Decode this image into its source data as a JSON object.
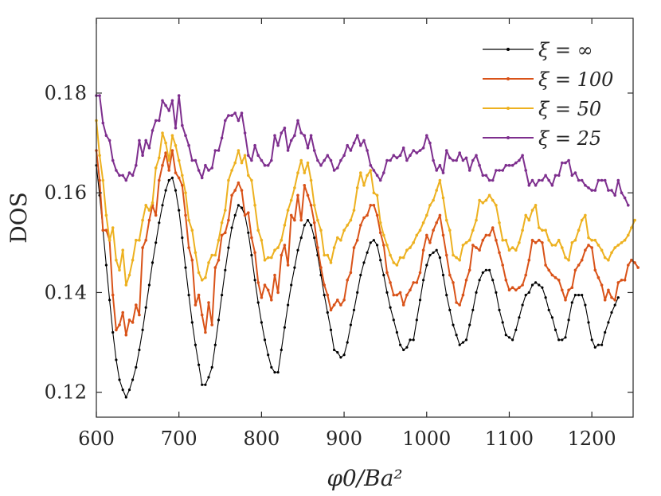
{
  "chart_data": {
    "type": "line",
    "title": "",
    "xlabel": "φ0/Ba²",
    "ylabel": "DOS",
    "xlim": [
      600,
      1250
    ],
    "ylim": [
      0.115,
      0.195
    ],
    "xticks": [
      600,
      700,
      800,
      900,
      1000,
      1100,
      1200
    ],
    "xtick_labels": [
      "600",
      "700",
      "800",
      "900",
      "1000",
      "1100",
      "1200"
    ],
    "yticks": [
      0.12,
      0.14,
      0.16,
      0.18
    ],
    "ytick_labels": [
      "0.12",
      "0.14",
      "0.16",
      "0.18"
    ],
    "grid": false,
    "legend_position": "top-right",
    "x_start": 600,
    "x_step": 4,
    "series": [
      {
        "name": "ξ = ∞",
        "color": "#000000",
        "values": [
          0.1655,
          0.1595,
          0.1525,
          0.1455,
          0.1385,
          0.132,
          0.1265,
          0.1225,
          0.1205,
          0.119,
          0.1205,
          0.1225,
          0.125,
          0.1285,
          0.1325,
          0.137,
          0.1415,
          0.146,
          0.15,
          0.154,
          0.1575,
          0.1605,
          0.1625,
          0.163,
          0.1605,
          0.1565,
          0.151,
          0.145,
          0.1395,
          0.134,
          0.1295,
          0.1255,
          0.1215,
          0.1215,
          0.123,
          0.125,
          0.1295,
          0.1345,
          0.1395,
          0.1445,
          0.149,
          0.153,
          0.1555,
          0.1575,
          0.157,
          0.1555,
          0.152,
          0.1475,
          0.1425,
          0.138,
          0.134,
          0.1305,
          0.1275,
          0.125,
          0.124,
          0.124,
          0.1285,
          0.133,
          0.1375,
          0.1415,
          0.145,
          0.1485,
          0.151,
          0.1535,
          0.1545,
          0.1535,
          0.151,
          0.1475,
          0.1435,
          0.1395,
          0.136,
          0.1325,
          0.1285,
          0.128,
          0.127,
          0.1275,
          0.13,
          0.1335,
          0.1365,
          0.14,
          0.1435,
          0.146,
          0.148,
          0.15,
          0.1505,
          0.1495,
          0.1465,
          0.1435,
          0.14,
          0.137,
          0.1345,
          0.132,
          0.1295,
          0.1285,
          0.129,
          0.1305,
          0.1305,
          0.1345,
          0.1385,
          0.1425,
          0.1455,
          0.1475,
          0.148,
          0.1485,
          0.147,
          0.1435,
          0.1395,
          0.1365,
          0.1335,
          0.1315,
          0.1295,
          0.13,
          0.1305,
          0.1335,
          0.1365,
          0.14,
          0.1425,
          0.144,
          0.1445,
          0.1445,
          0.1425,
          0.14,
          0.1365,
          0.134,
          0.1315,
          0.131,
          0.1305,
          0.1325,
          0.135,
          0.1375,
          0.1395,
          0.14,
          0.1415,
          0.142,
          0.1415,
          0.141,
          0.139,
          0.1365,
          0.135,
          0.1325,
          0.1305,
          0.1305,
          0.131,
          0.1345,
          0.138,
          0.1395,
          0.1395,
          0.1395,
          0.1375,
          0.134,
          0.1305,
          0.129,
          0.1295,
          0.1295,
          0.132,
          0.134,
          0.136,
          0.1375,
          0.139
        ]
      },
      {
        "name": "ξ = 100",
        "color": "#D95319",
        "values": [
          0.1685,
          0.1625,
          0.1525,
          0.1525,
          0.1505,
          0.1395,
          0.1325,
          0.1335,
          0.136,
          0.1315,
          0.1345,
          0.134,
          0.1375,
          0.1355,
          0.149,
          0.1505,
          0.1545,
          0.1575,
          0.1555,
          0.1625,
          0.1655,
          0.168,
          0.1645,
          0.1685,
          0.164,
          0.163,
          0.1615,
          0.1555,
          0.149,
          0.1465,
          0.1375,
          0.1395,
          0.1355,
          0.132,
          0.138,
          0.1335,
          0.145,
          0.1465,
          0.1515,
          0.152,
          0.1545,
          0.1595,
          0.1605,
          0.162,
          0.1605,
          0.1555,
          0.156,
          0.151,
          0.148,
          0.142,
          0.139,
          0.1415,
          0.1405,
          0.1385,
          0.1435,
          0.14,
          0.1475,
          0.1495,
          0.1455,
          0.1555,
          0.1545,
          0.1595,
          0.1545,
          0.1615,
          0.1595,
          0.1575,
          0.154,
          0.149,
          0.145,
          0.1415,
          0.1395,
          0.1365,
          0.1375,
          0.1385,
          0.1375,
          0.1385,
          0.1425,
          0.144,
          0.149,
          0.1505,
          0.1535,
          0.155,
          0.1555,
          0.1575,
          0.1575,
          0.1555,
          0.152,
          0.1495,
          0.144,
          0.142,
          0.1395,
          0.1395,
          0.14,
          0.1375,
          0.1395,
          0.1405,
          0.142,
          0.142,
          0.144,
          0.1485,
          0.1515,
          0.15,
          0.1525,
          0.154,
          0.1555,
          0.1515,
          0.1475,
          0.1435,
          0.142,
          0.138,
          0.1375,
          0.1395,
          0.1425,
          0.1445,
          0.1495,
          0.149,
          0.1485,
          0.1505,
          0.1515,
          0.1515,
          0.153,
          0.1505,
          0.148,
          0.1455,
          0.1425,
          0.1405,
          0.141,
          0.1405,
          0.141,
          0.1415,
          0.1435,
          0.1465,
          0.1505,
          0.15,
          0.1505,
          0.15,
          0.1455,
          0.1445,
          0.1435,
          0.143,
          0.1425,
          0.1405,
          0.1385,
          0.1405,
          0.141,
          0.1445,
          0.1455,
          0.1465,
          0.1485,
          0.1495,
          0.149,
          0.1445,
          0.143,
          0.1415,
          0.1385,
          0.1405,
          0.139,
          0.1385,
          0.142,
          0.1425,
          0.1425,
          0.1455,
          0.1465,
          0.146,
          0.145
        ]
      },
      {
        "name": "ξ = 50",
        "color": "#EDB120",
        "values": [
          0.1745,
          0.1675,
          0.1625,
          0.1555,
          0.1505,
          0.153,
          0.1465,
          0.1445,
          0.1485,
          0.1415,
          0.1435,
          0.1465,
          0.1505,
          0.1505,
          0.1545,
          0.1575,
          0.1565,
          0.158,
          0.165,
          0.167,
          0.172,
          0.17,
          0.1665,
          0.1715,
          0.1695,
          0.1665,
          0.1635,
          0.16,
          0.1545,
          0.1525,
          0.148,
          0.144,
          0.1425,
          0.143,
          0.146,
          0.1475,
          0.1475,
          0.1505,
          0.154,
          0.1565,
          0.1625,
          0.1645,
          0.166,
          0.1685,
          0.166,
          0.1675,
          0.1635,
          0.1625,
          0.1575,
          0.1525,
          0.1505,
          0.1465,
          0.147,
          0.147,
          0.1485,
          0.149,
          0.1505,
          0.1535,
          0.1565,
          0.1585,
          0.161,
          0.164,
          0.1665,
          0.164,
          0.166,
          0.1625,
          0.1575,
          0.1545,
          0.1525,
          0.1475,
          0.1475,
          0.146,
          0.149,
          0.151,
          0.1505,
          0.1525,
          0.1535,
          0.1545,
          0.1565,
          0.161,
          0.164,
          0.1615,
          0.1635,
          0.1645,
          0.16,
          0.1595,
          0.154,
          0.1515,
          0.1495,
          0.1475,
          0.146,
          0.1455,
          0.147,
          0.147,
          0.1485,
          0.149,
          0.15,
          0.1515,
          0.1525,
          0.154,
          0.1555,
          0.1575,
          0.1585,
          0.1605,
          0.1625,
          0.159,
          0.1545,
          0.1525,
          0.1475,
          0.147,
          0.1465,
          0.1495,
          0.15,
          0.1505,
          0.1525,
          0.1545,
          0.1585,
          0.158,
          0.1585,
          0.1595,
          0.1585,
          0.1575,
          0.154,
          0.1505,
          0.1505,
          0.1485,
          0.149,
          0.1485,
          0.15,
          0.1525,
          0.1555,
          0.1545,
          0.1565,
          0.1575,
          0.153,
          0.1525,
          0.1525,
          0.1505,
          0.1495,
          0.1495,
          0.1505,
          0.149,
          0.147,
          0.1465,
          0.15,
          0.1505,
          0.1525,
          0.1545,
          0.1555,
          0.151,
          0.1505,
          0.1505,
          0.1495,
          0.1485,
          0.147,
          0.1465,
          0.148,
          0.149,
          0.1495,
          0.15,
          0.1505,
          0.1515,
          0.153,
          0.1545
        ]
      },
      {
        "name": "ξ = 25",
        "color": "#7E2F8E",
        "values": [
          0.1795,
          0.1795,
          0.174,
          0.1715,
          0.1705,
          0.1665,
          0.1645,
          0.1635,
          0.1635,
          0.1625,
          0.164,
          0.1635,
          0.1655,
          0.1705,
          0.1675,
          0.1705,
          0.169,
          0.1725,
          0.1745,
          0.1745,
          0.1785,
          0.1775,
          0.1765,
          0.1785,
          0.173,
          0.1795,
          0.1735,
          0.1715,
          0.1695,
          0.1665,
          0.1665,
          0.1645,
          0.163,
          0.1655,
          0.1645,
          0.165,
          0.1685,
          0.1685,
          0.171,
          0.1745,
          0.1755,
          0.1755,
          0.176,
          0.1745,
          0.176,
          0.172,
          0.1675,
          0.1665,
          0.1695,
          0.1675,
          0.1665,
          0.1655,
          0.1655,
          0.1665,
          0.1715,
          0.1695,
          0.172,
          0.173,
          0.1685,
          0.1705,
          0.1715,
          0.1745,
          0.172,
          0.1715,
          0.169,
          0.1715,
          0.1685,
          0.1665,
          0.1655,
          0.1665,
          0.1675,
          0.1665,
          0.1645,
          0.165,
          0.1665,
          0.1675,
          0.1695,
          0.1685,
          0.17,
          0.1715,
          0.1695,
          0.1705,
          0.1685,
          0.1655,
          0.1645,
          0.1635,
          0.1625,
          0.164,
          0.1665,
          0.1665,
          0.1675,
          0.167,
          0.1675,
          0.169,
          0.1665,
          0.1675,
          0.1685,
          0.168,
          0.1685,
          0.169,
          0.1715,
          0.17,
          0.1665,
          0.1645,
          0.1655,
          0.164,
          0.1685,
          0.167,
          0.1665,
          0.1665,
          0.168,
          0.1665,
          0.167,
          0.1645,
          0.1665,
          0.1675,
          0.1655,
          0.1635,
          0.1635,
          0.1625,
          0.1625,
          0.1645,
          0.1645,
          0.1645,
          0.1655,
          0.1655,
          0.1655,
          0.166,
          0.1665,
          0.1675,
          0.1645,
          0.1615,
          0.1625,
          0.1615,
          0.1625,
          0.1625,
          0.1635,
          0.1625,
          0.1615,
          0.1635,
          0.1635,
          0.166,
          0.166,
          0.1665,
          0.1635,
          0.164,
          0.1625,
          0.1625,
          0.1615,
          0.161,
          0.1605,
          0.1605,
          0.1625,
          0.1625,
          0.1625,
          0.1605,
          0.1605,
          0.1595,
          0.1625,
          0.16,
          0.159,
          0.1575
        ]
      }
    ]
  }
}
